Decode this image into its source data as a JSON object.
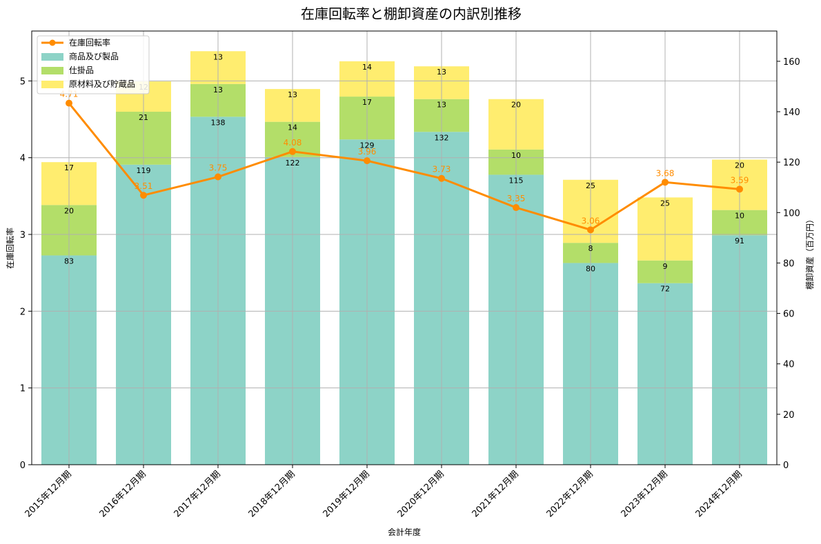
{
  "chart_data": {
    "type": "bar",
    "title": "在庫回転率と棚卸資産の内訳別推移",
    "xlabel": "会計年度",
    "ylabel_left": "在庫回転率",
    "ylabel_right": "棚卸資産（百万円）",
    "categories": [
      "2015年12月期",
      "2016年12月期",
      "2017年12月期",
      "2018年12月期",
      "2019年12月期",
      "2020年12月期",
      "2021年12月期",
      "2022年12月期",
      "2023年12月期",
      "2024年12月期"
    ],
    "ylim_left": [
      0,
      5.65
    ],
    "ylim_right": [
      0,
      172
    ],
    "yticks_left": [
      0,
      1,
      2,
      3,
      4,
      5
    ],
    "yticks_right": [
      0,
      20,
      40,
      60,
      80,
      100,
      120,
      140,
      160
    ],
    "grid": true,
    "legend_position": "top-left",
    "stacked_series": [
      {
        "name": "商品及び製品",
        "color": "#8dd3c7",
        "values": [
          83,
          119,
          138,
          122,
          129,
          132,
          115,
          80,
          72,
          91
        ]
      },
      {
        "name": "仕掛品",
        "color": "#b3de69",
        "values": [
          20,
          21,
          13,
          14,
          17,
          13,
          10,
          8,
          9,
          10
        ]
      },
      {
        "name": "原材料及び貯蔵品",
        "color": "#ffed6f",
        "values": [
          17,
          12,
          13,
          13,
          14,
          13,
          20,
          25,
          25,
          20
        ]
      }
    ],
    "line_series": {
      "name": "在庫回転率",
      "color": "#ff8c00",
      "axis": "left",
      "values": [
        4.71,
        3.51,
        3.75,
        4.08,
        3.96,
        3.73,
        3.35,
        3.06,
        3.68,
        3.59
      ],
      "labels": [
        "4.71",
        "3.51",
        "3.75",
        "4.08",
        "3.96",
        "3.73",
        "3.35",
        "3.06",
        "3.68",
        "3.59"
      ]
    }
  }
}
